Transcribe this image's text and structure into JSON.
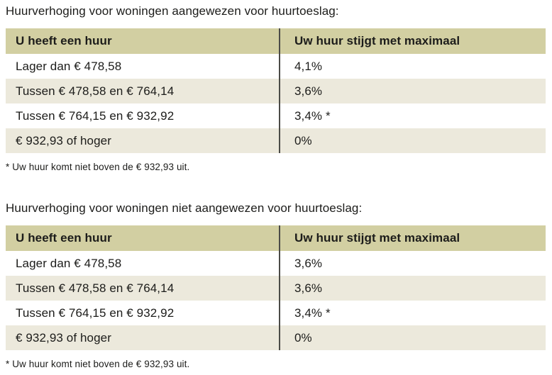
{
  "colors": {
    "header_bg": "#d2cfa2",
    "row_alt_bg": "#ece9dc",
    "divider": "#4b4b47",
    "text": "#1c1c1a"
  },
  "tables": [
    {
      "title": "Huurverhoging voor woningen aangewezen voor huurtoeslag:",
      "columns": [
        "U heeft een huur",
        "Uw huur stijgt met maximaal"
      ],
      "rows": [
        [
          "Lager dan € 478,58",
          "4,1%"
        ],
        [
          "Tussen € 478,58 en € 764,14",
          "3,6%"
        ],
        [
          "Tussen € 764,15 en € 932,92",
          "3,4% *"
        ],
        [
          "€ 932,93 of hoger",
          "0%"
        ]
      ],
      "footnote": "* Uw huur komt niet boven de € 932,93 uit."
    },
    {
      "title": "Huurverhoging voor woningen niet aangewezen voor huurtoeslag:",
      "columns": [
        "U heeft een huur",
        "Uw huur stijgt met maximaal"
      ],
      "rows": [
        [
          "Lager dan € 478,58",
          "3,6%"
        ],
        [
          "Tussen € 478,58 en € 764,14",
          "3,6%"
        ],
        [
          "Tussen € 764,15 en € 932,92",
          "3,4% *"
        ],
        [
          "€ 932,93 of hoger",
          "0%"
        ]
      ],
      "footnote": "* Uw huur komt niet boven de € 932,93 uit."
    }
  ]
}
